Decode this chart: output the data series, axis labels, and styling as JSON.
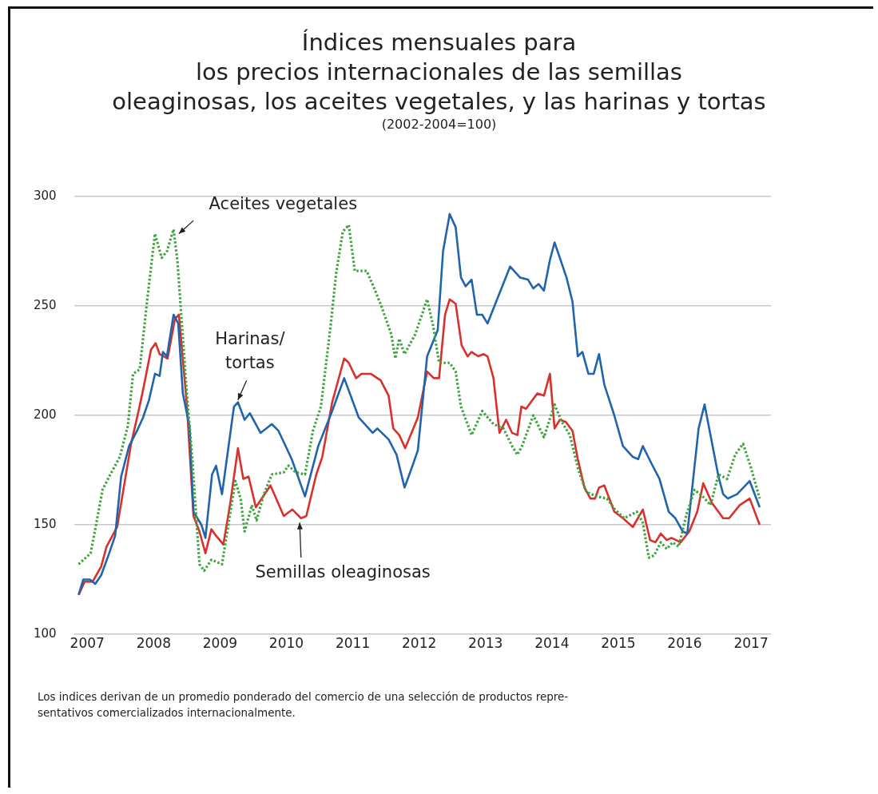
{
  "chart_data": {
    "type": "line",
    "title": "Índices mensuales para\nlos precios internacionales de las semillas\noleaginosas, los aceites vegetales, y las harinas y tortas",
    "subtitle": "(2002-2004=100)",
    "xlim": [
      2006.8,
      2017.3
    ],
    "xticks": [
      2007,
      2008,
      2009,
      2010,
      2011,
      2012,
      2013,
      2014,
      2015,
      2016,
      2017
    ],
    "ylim": [
      100,
      300
    ],
    "yticks": [
      100,
      150,
      200,
      250,
      300
    ],
    "grid": "y",
    "legend": false,
    "marker": "none",
    "annotations": [
      "Los indices derivan de un promedio ponderado del comercio de una selección de productos repre-\nsentativos comercializados internacionalmente."
    ],
    "series": [
      {
        "name": "Aceites vegetales",
        "color": "#3da33d",
        "line_style": "dotted",
        "x": [
          2006.87,
          2007.05,
          2007.12,
          2007.23,
          2007.33,
          2007.49,
          2007.61,
          2007.69,
          2007.79,
          2007.9,
          2008.02,
          2008.12,
          2008.2,
          2008.3,
          2008.36,
          2008.42,
          2008.5,
          2008.58,
          2008.69,
          2008.76,
          2008.87,
          2009.03,
          2009.12,
          2009.23,
          2009.31,
          2009.37,
          2009.48,
          2009.55,
          2009.66,
          2009.78,
          2009.96,
          2010.03,
          2010.14,
          2010.28,
          2010.4,
          2010.52,
          2010.67,
          2010.75,
          2010.85,
          2010.94,
          2011.03,
          2011.21,
          2011.31,
          2011.43,
          2011.58,
          2011.64,
          2011.7,
          2011.78,
          2011.94,
          2012.12,
          2012.21,
          2012.3,
          2012.46,
          2012.55,
          2012.63,
          2012.79,
          2012.95,
          2013.12,
          2013.27,
          2013.4,
          2013.48,
          2013.55,
          2013.72,
          2013.88,
          2014.04,
          2014.15,
          2014.27,
          2014.4,
          2014.52,
          2014.67,
          2014.83,
          2014.95,
          2015.09,
          2015.28,
          2015.37,
          2015.46,
          2015.54,
          2015.64,
          2015.73,
          2015.82,
          2015.91,
          2016.03,
          2016.15,
          2016.27,
          2016.39,
          2016.51,
          2016.64,
          2016.76,
          2016.88,
          2017.0,
          2017.13
        ],
        "values": [
          132,
          137,
          148,
          166,
          172,
          181,
          195,
          219,
          221,
          252,
          283,
          272,
          275,
          285,
          270,
          244,
          210,
          181,
          132,
          129,
          134,
          132,
          149,
          170,
          162,
          147,
          159,
          152,
          164,
          173,
          174,
          177,
          174,
          173,
          193,
          204,
          242,
          265,
          284,
          287,
          266,
          266,
          259,
          250,
          237,
          226,
          235,
          228,
          237,
          253,
          241,
          224,
          224,
          220,
          204,
          191,
          202,
          196,
          194,
          186,
          182,
          186,
          200,
          190,
          205,
          197,
          191,
          175,
          165,
          163,
          162,
          157,
          153,
          156,
          151,
          135,
          136,
          142,
          139,
          142,
          140,
          155,
          166,
          163,
          159,
          173,
          171,
          182,
          187,
          176,
          162
        ]
      },
      {
        "name": "Harinas/tortas",
        "color": "#1f64ac",
        "line_style": "solid",
        "x": [
          2006.87,
          2006.94,
          2007.04,
          2007.12,
          2007.21,
          2007.33,
          2007.42,
          2007.51,
          2007.63,
          2007.75,
          2007.84,
          2007.93,
          2008.02,
          2008.09,
          2008.14,
          2008.2,
          2008.3,
          2008.37,
          2008.44,
          2008.54,
          2008.6,
          2008.72,
          2008.78,
          2008.88,
          2008.94,
          2009.03,
          2009.21,
          2009.27,
          2009.37,
          2009.45,
          2009.61,
          2009.78,
          2009.88,
          2010.08,
          2010.28,
          2010.48,
          2010.69,
          2010.87,
          2011.09,
          2011.3,
          2011.37,
          2011.54,
          2011.66,
          2011.78,
          2011.9,
          2011.98,
          2012.12,
          2012.28,
          2012.36,
          2012.46,
          2012.55,
          2012.63,
          2012.7,
          2012.79,
          2012.87,
          2012.95,
          2013.03,
          2013.37,
          2013.52,
          2013.64,
          2013.72,
          2013.8,
          2013.88,
          2013.97,
          2014.04,
          2014.22,
          2014.31,
          2014.39,
          2014.46,
          2014.55,
          2014.63,
          2014.71,
          2014.79,
          2014.94,
          2015.07,
          2015.22,
          2015.3,
          2015.37,
          2015.5,
          2015.62,
          2015.76,
          2015.86,
          2015.97,
          2016.04,
          2016.21,
          2016.3,
          2016.51,
          2016.58,
          2016.65,
          2016.79,
          2016.98,
          2017.13
        ],
        "values": [
          118,
          125,
          125,
          123,
          127,
          137,
          145,
          172,
          186,
          193,
          199,
          207,
          219,
          218,
          229,
          227,
          246,
          242,
          210,
          195,
          156,
          150,
          144,
          173,
          177,
          164,
          204,
          206,
          198,
          201,
          192,
          196,
          193,
          180,
          163,
          186,
          202,
          217,
          199,
          192,
          194,
          189,
          182,
          167,
          177,
          184,
          227,
          239,
          275,
          292,
          286,
          263,
          259,
          262,
          246,
          246,
          242,
          268,
          263,
          262,
          258,
          260,
          257,
          271,
          279,
          263,
          252,
          227,
          229,
          219,
          219,
          228,
          214,
          200,
          186,
          181,
          180,
          186,
          178,
          171,
          156,
          153,
          147,
          146,
          194,
          205,
          172,
          164,
          162,
          164,
          170,
          158
        ]
      },
      {
        "name": "Semillas oleaginosas",
        "color": "#d9302c",
        "line_style": "solid",
        "x": [
          2006.87,
          2006.96,
          2007.08,
          2007.21,
          2007.29,
          2007.45,
          2007.66,
          2007.78,
          2007.85,
          2007.96,
          2008.03,
          2008.09,
          2008.21,
          2008.32,
          2008.38,
          2008.5,
          2008.6,
          2008.69,
          2008.78,
          2008.87,
          2008.94,
          2009.05,
          2009.15,
          2009.27,
          2009.35,
          2009.43,
          2009.54,
          2009.76,
          2009.96,
          2010.09,
          2010.22,
          2010.3,
          2010.45,
          2010.54,
          2010.69,
          2010.87,
          2010.94,
          2011.05,
          2011.13,
          2011.27,
          2011.42,
          2011.54,
          2011.61,
          2011.7,
          2011.79,
          2011.98,
          2012.12,
          2012.22,
          2012.3,
          2012.39,
          2012.46,
          2012.55,
          2012.64,
          2012.73,
          2012.79,
          2012.89,
          2012.97,
          2013.03,
          2013.12,
          2013.21,
          2013.31,
          2013.4,
          2013.48,
          2013.54,
          2013.61,
          2013.78,
          2013.88,
          2013.97,
          2014.04,
          2014.12,
          2014.21,
          2014.31,
          2014.39,
          2014.49,
          2014.58,
          2014.65,
          2014.71,
          2014.79,
          2014.94,
          2015.07,
          2015.22,
          2015.37,
          2015.48,
          2015.56,
          2015.64,
          2015.73,
          2015.8,
          2015.94,
          2016.07,
          2016.19,
          2016.28,
          2016.41,
          2016.58,
          2016.67,
          2016.83,
          2016.98,
          2017.13
        ],
        "values": [
          118,
          124,
          124,
          131,
          140,
          149,
          187,
          203,
          213,
          230,
          233,
          228,
          226,
          244,
          246,
          205,
          154,
          147,
          137,
          148,
          145,
          141,
          159,
          185,
          171,
          172,
          158,
          168,
          154,
          157,
          153,
          154,
          173,
          181,
          206,
          226,
          224,
          217,
          219,
          219,
          216,
          209,
          194,
          191,
          185,
          199,
          220,
          217,
          217,
          246,
          253,
          251,
          232,
          227,
          229,
          227,
          228,
          227,
          217,
          192,
          198,
          192,
          191,
          204,
          203,
          210,
          209,
          219,
          194,
          198,
          197,
          193,
          180,
          167,
          162,
          162,
          167,
          168,
          156,
          153,
          149,
          157,
          143,
          142,
          146,
          143,
          144,
          142,
          147,
          156,
          169,
          160,
          153,
          153,
          159,
          162,
          150
        ]
      }
    ]
  }
}
